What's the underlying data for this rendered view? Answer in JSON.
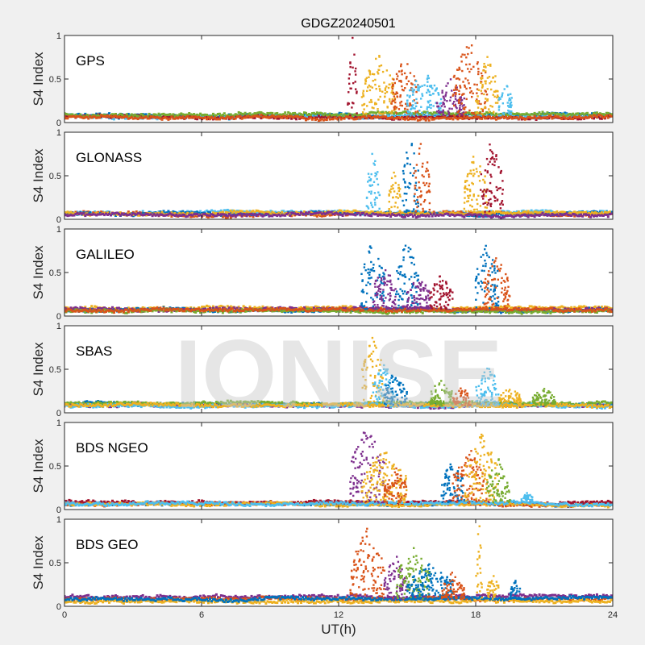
{
  "chart_data": {
    "type": "scatter",
    "title": "GDGZ20240501",
    "xlabel": "UT(h)",
    "ylabel": "S4 Index",
    "xlim": [
      0,
      24
    ],
    "ylim": [
      0,
      1
    ],
    "xticks": [
      "0",
      "6",
      "12",
      "18",
      "24"
    ],
    "xtick_values": [
      0,
      6,
      12,
      18,
      24
    ],
    "yticks": [
      "0",
      "0.5",
      "1"
    ],
    "ytick_values": [
      0,
      0.5,
      1
    ],
    "watermark": "IONISE",
    "colors": {
      "blue": "#0072BD",
      "orange": "#D95319",
      "yellow": "#EDB120",
      "purple": "#7E2F8E",
      "green": "#77AC30",
      "cyan": "#4DBEEE",
      "darkred": "#A2142F"
    },
    "panels": [
      {
        "label": "GPS",
        "baseline": [
          {
            "color": "blue",
            "level": 0.08
          },
          {
            "color": "cyan",
            "level": 0.07
          },
          {
            "color": "darkred",
            "level": 0.06
          },
          {
            "color": "green",
            "level": 0.09
          },
          {
            "color": "orange",
            "level": 0.06
          }
        ],
        "bursts": [
          [
            12.4,
            12.8,
            1.0,
            "darkred"
          ],
          [
            13,
            14.5,
            0.8,
            "yellow"
          ],
          [
            14.3,
            15.5,
            0.8,
            "orange"
          ],
          [
            15,
            16.5,
            0.6,
            "cyan"
          ],
          [
            16.3,
            17.5,
            0.5,
            "purple"
          ],
          [
            17,
            18.5,
            1.0,
            "orange"
          ],
          [
            18,
            19,
            0.8,
            "yellow"
          ],
          [
            19,
            19.6,
            0.5,
            "cyan"
          ]
        ]
      },
      {
        "label": "GLONASS",
        "baseline": [
          {
            "color": "cyan",
            "level": 0.08
          },
          {
            "color": "orange",
            "level": 0.06
          },
          {
            "color": "blue",
            "level": 0.07
          },
          {
            "color": "yellow",
            "level": 0.07
          },
          {
            "color": "purple",
            "level": 0.05
          }
        ],
        "bursts": [
          [
            13.2,
            13.8,
            0.8,
            "cyan"
          ],
          [
            14.2,
            14.7,
            0.6,
            "yellow"
          ],
          [
            14.8,
            15.5,
            1.0,
            "blue"
          ],
          [
            15.3,
            16,
            1.0,
            "orange"
          ],
          [
            17.5,
            18.5,
            0.8,
            "yellow"
          ],
          [
            18.2,
            19.2,
            0.95,
            "darkred"
          ]
        ]
      },
      {
        "label": "GALILEO",
        "baseline": [
          {
            "color": "yellow",
            "level": 0.09
          },
          {
            "color": "blue",
            "level": 0.07
          },
          {
            "color": "purple",
            "level": 0.08
          },
          {
            "color": "green",
            "level": 0.06
          },
          {
            "color": "orange",
            "level": 0.07
          }
        ],
        "bursts": [
          [
            13,
            14,
            0.9,
            "blue"
          ],
          [
            13.5,
            14.5,
            0.6,
            "purple"
          ],
          [
            14.5,
            15.5,
            0.9,
            "blue"
          ],
          [
            15,
            16,
            0.5,
            "purple"
          ],
          [
            16,
            17,
            0.5,
            "darkred"
          ],
          [
            18,
            19,
            0.9,
            "blue"
          ],
          [
            18.3,
            19.5,
            0.7,
            "orange"
          ]
        ]
      },
      {
        "label": "SBAS",
        "baseline": [
          {
            "color": "blue",
            "level": 0.1
          },
          {
            "color": "purple",
            "level": 0.09
          },
          {
            "color": "green",
            "level": 0.11
          },
          {
            "color": "cyan",
            "level": 0.08
          },
          {
            "color": "yellow",
            "level": 0.09
          }
        ],
        "bursts": [
          [
            13,
            14,
            0.9,
            "yellow"
          ],
          [
            13.5,
            14.5,
            0.6,
            "cyan"
          ],
          [
            14,
            15,
            0.5,
            "blue"
          ],
          [
            16,
            17,
            0.4,
            "green"
          ],
          [
            17,
            17.8,
            0.3,
            "orange"
          ],
          [
            18,
            19,
            0.6,
            "cyan"
          ],
          [
            19,
            20,
            0.3,
            "yellow"
          ],
          [
            20.5,
            21.5,
            0.3,
            "green"
          ]
        ]
      },
      {
        "label": "BDS NGEO",
        "baseline": [
          {
            "color": "blue",
            "level": 0.06
          },
          {
            "color": "orange",
            "level": 0.07
          },
          {
            "color": "darkred",
            "level": 0.08
          },
          {
            "color": "yellow",
            "level": 0.06
          },
          {
            "color": "cyan",
            "level": 0.07
          }
        ],
        "bursts": [
          [
            12.5,
            14,
            1.0,
            "purple"
          ],
          [
            13,
            15,
            0.7,
            "yellow"
          ],
          [
            14,
            15,
            0.5,
            "orange"
          ],
          [
            16.5,
            17.5,
            0.6,
            "blue"
          ],
          [
            17,
            18.5,
            0.7,
            "orange"
          ],
          [
            17.5,
            19,
            0.9,
            "yellow"
          ],
          [
            18.5,
            19.5,
            0.6,
            "green"
          ],
          [
            20,
            20.5,
            0.2,
            "cyan"
          ]
        ]
      },
      {
        "label": "BDS GEO",
        "baseline": [
          {
            "color": "purple",
            "level": 0.11
          },
          {
            "color": "orange",
            "level": 0.08
          },
          {
            "color": "yellow",
            "level": 0.06
          },
          {
            "color": "blue",
            "level": 0.09
          }
        ],
        "bursts": [
          [
            12.5,
            14,
            0.9,
            "orange"
          ],
          [
            14,
            15,
            0.6,
            "purple"
          ],
          [
            14.5,
            16,
            0.7,
            "green"
          ],
          [
            15,
            17,
            0.5,
            "blue"
          ],
          [
            16.5,
            17.5,
            0.4,
            "orange"
          ],
          [
            18,
            18.3,
            1.0,
            "yellow"
          ],
          [
            18.5,
            19,
            0.4,
            "yellow"
          ],
          [
            19.5,
            20,
            0.3,
            "blue"
          ]
        ]
      }
    ]
  }
}
